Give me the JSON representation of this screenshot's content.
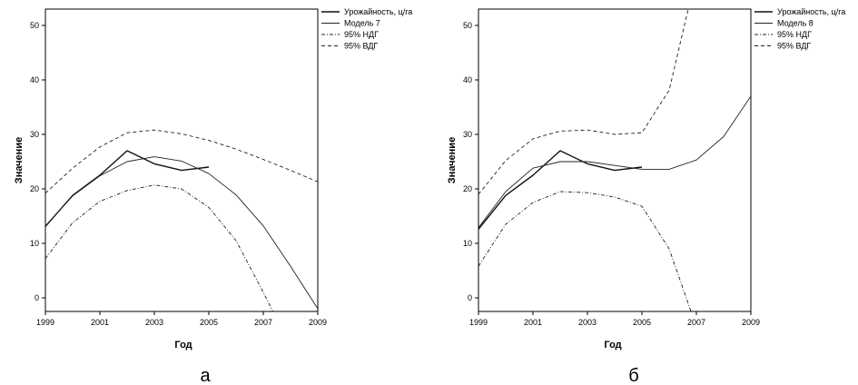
{
  "chart_data": [
    {
      "type": "line",
      "panel_label": "а",
      "xlabel": "Год",
      "ylabel": "Значение",
      "xlim": [
        1999,
        2009
      ],
      "ylim": [
        -2.5,
        53
      ],
      "x_ticks": [
        "1999",
        "2001",
        "2003",
        "2005",
        "2007",
        "2009"
      ],
      "y_ticks": [
        "0",
        "10",
        "20",
        "30",
        "40",
        "50"
      ],
      "legend_position": "top-right",
      "series": [
        {
          "name": "Урожайность, ц/га",
          "style": "solid-bold",
          "x": [
            1999,
            2000,
            2001,
            2002,
            2003,
            2004,
            2005
          ],
          "y": [
            13.1,
            18.8,
            22.5,
            27.0,
            24.6,
            23.4,
            24.0
          ]
        },
        {
          "name": "Модель 7",
          "style": "solid",
          "x": [
            1999,
            2000,
            2001,
            2002,
            2003,
            2004,
            2005,
            2006,
            2007,
            2008,
            2009
          ],
          "y": [
            13.2,
            18.7,
            22.4,
            25.0,
            25.9,
            25.1,
            22.8,
            18.9,
            13.2,
            5.8,
            -2.0
          ]
        },
        {
          "name": "95% НДГ",
          "style": "dashdot",
          "x": [
            1999,
            2000,
            2001,
            2002,
            2003,
            2004,
            2005,
            2006,
            2007,
            2007.35
          ],
          "y": [
            7.2,
            13.8,
            17.7,
            19.7,
            20.7,
            20.0,
            16.6,
            10.5,
            1.0,
            -2.5
          ]
        },
        {
          "name": "95% ВДГ",
          "style": "dashed",
          "x": [
            1999,
            2000,
            2001,
            2002,
            2003,
            2004,
            2005,
            2006,
            2007,
            2008,
            2009
          ],
          "y": [
            19.2,
            23.8,
            27.7,
            30.3,
            30.8,
            30.1,
            28.9,
            27.3,
            25.4,
            23.4,
            21.3
          ]
        }
      ]
    },
    {
      "type": "line",
      "panel_label": "б",
      "xlabel": "Год",
      "ylabel": "Значение",
      "xlim": [
        1999,
        2009
      ],
      "ylim": [
        -2.5,
        53
      ],
      "x_ticks": [
        "1999",
        "2001",
        "2003",
        "2005",
        "2007",
        "2009"
      ],
      "y_ticks": [
        "0",
        "10",
        "20",
        "30",
        "40",
        "50"
      ],
      "legend_position": "top-right",
      "series": [
        {
          "name": "Урожайность, ц/га",
          "style": "solid-bold",
          "x": [
            1999,
            2000,
            2001,
            2002,
            2003,
            2004,
            2005
          ],
          "y": [
            12.6,
            18.8,
            22.5,
            27.0,
            24.6,
            23.4,
            24.0
          ]
        },
        {
          "name": "Модель 8",
          "style": "solid",
          "x": [
            1999,
            2000,
            2001,
            2002,
            2003,
            2004,
            2005,
            2006,
            2007,
            2008,
            2009
          ],
          "y": [
            12.9,
            19.5,
            23.8,
            25.0,
            25.0,
            24.3,
            23.6,
            23.6,
            25.3,
            29.6,
            37.0
          ]
        },
        {
          "name": "95% НДГ",
          "style": "dashdot",
          "x": [
            1999,
            2000,
            2001,
            2002,
            2003,
            2004,
            2005,
            2006,
            2006.8
          ],
          "y": [
            5.8,
            13.5,
            17.5,
            19.5,
            19.3,
            18.5,
            16.8,
            9.0,
            -2.5
          ]
        },
        {
          "name": "95% ВДГ",
          "style": "dashed",
          "x": [
            1999,
            2000,
            2001,
            2002,
            2003,
            2004,
            2005,
            2006,
            2006.7
          ],
          "y": [
            19.0,
            25.2,
            29.2,
            30.6,
            30.8,
            30.0,
            30.3,
            38.1,
            53.0
          ]
        }
      ]
    }
  ]
}
